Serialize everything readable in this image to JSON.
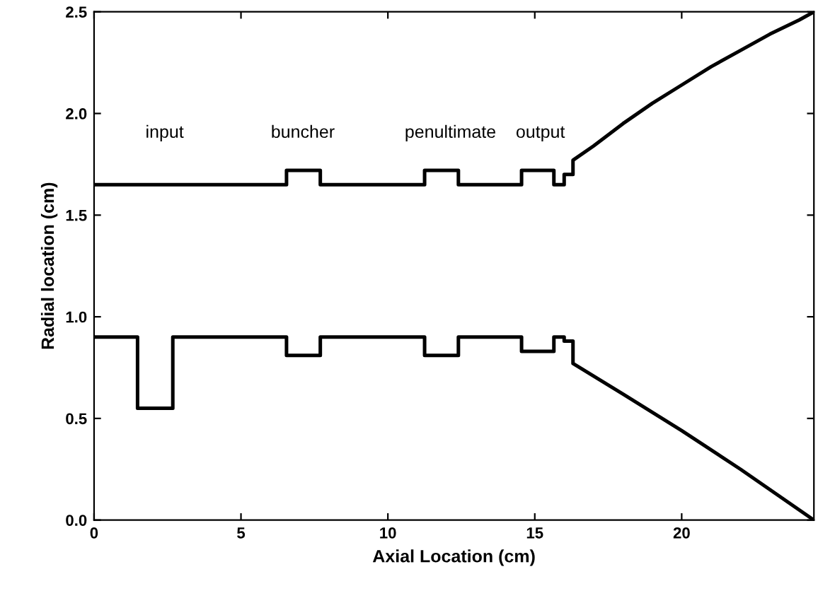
{
  "chart_data": {
    "type": "line",
    "xlabel": "Axial Location (cm)",
    "ylabel": "Radial location (cm)",
    "series": [
      {
        "color": "#000000",
        "x": [
          0,
          6.55,
          6.55,
          7.7,
          7.7,
          11.25,
          11.25,
          12.4,
          12.4,
          14.55,
          14.55,
          15.65,
          15.65,
          16.0,
          16.0,
          16.3,
          16.3,
          17,
          18,
          19,
          20,
          21,
          22,
          23,
          24,
          24.5
        ],
        "values": [
          1.65,
          1.65,
          1.72,
          1.72,
          1.65,
          1.65,
          1.72,
          1.72,
          1.65,
          1.65,
          1.72,
          1.72,
          1.65,
          1.65,
          1.7,
          1.7,
          1.77,
          1.84,
          1.95,
          2.05,
          2.14,
          2.23,
          2.31,
          2.39,
          2.46,
          2.5
        ]
      },
      {
        "color": "#000000",
        "x": [
          0,
          1.48,
          1.48,
          2.68,
          2.68,
          6.55,
          6.55,
          7.7,
          7.7,
          11.25,
          11.25,
          12.4,
          12.4,
          14.55,
          14.55,
          15.65,
          15.65,
          16.0,
          16.0,
          16.3,
          16.3,
          18,
          20,
          22,
          24.5
        ],
        "values": [
          0.9,
          0.9,
          0.55,
          0.55,
          0.9,
          0.9,
          0.81,
          0.81,
          0.9,
          0.9,
          0.81,
          0.81,
          0.9,
          0.9,
          0.83,
          0.83,
          0.9,
          0.9,
          0.88,
          0.88,
          0.77,
          0.62,
          0.44,
          0.25,
          0
        ]
      }
    ],
    "annotations": [
      "input",
      "buncher",
      "penultimate",
      "output"
    ],
    "xlim": [
      0,
      24.5
    ],
    "ylim": [
      0,
      2.5
    ],
    "xticks": [
      0,
      5,
      10,
      15,
      20
    ],
    "yticks": [
      {
        "value": 0,
        "label": "0.0"
      },
      {
        "value": 0.5,
        "label": "0.5"
      },
      {
        "value": 1,
        "label": "1.0"
      },
      {
        "value": 1.5,
        "label": "1.5"
      },
      {
        "value": 2,
        "label": "2.0"
      },
      {
        "value": 2.5,
        "label": "2.5"
      }
    ],
    "grid": false,
    "legend": false,
    "marker": "none",
    "line_style": "solid"
  }
}
